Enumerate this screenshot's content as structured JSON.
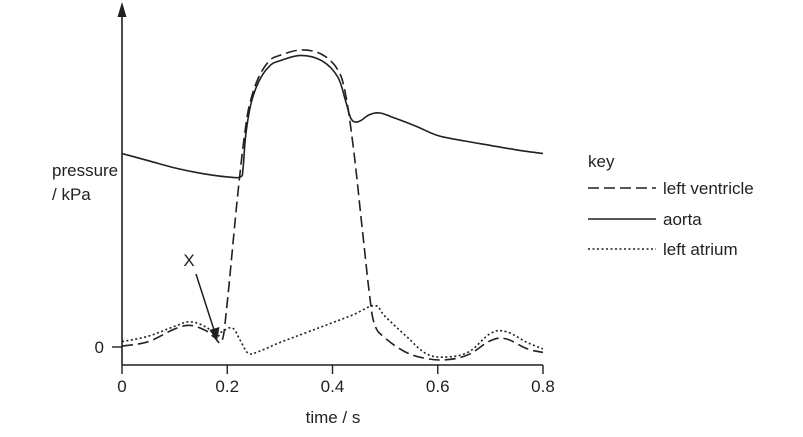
{
  "chart_data": {
    "type": "line",
    "xlabel": "time / s",
    "ylabel_line1": "pressure",
    "ylabel_line2": "/ kPa",
    "xlim": [
      0,
      0.8
    ],
    "x_ticks": [
      "0",
      "0.2",
      "0.4",
      "0.6",
      "0.8"
    ],
    "y_tick_zero": "0",
    "grid": false,
    "annotation": "X",
    "legend": {
      "title": "key",
      "placement": "right",
      "entries": [
        {
          "label": "left ventricle",
          "style": "dashed"
        },
        {
          "label": "aorta",
          "style": "solid"
        },
        {
          "label": "left atrium",
          "style": "dotted"
        }
      ]
    },
    "series": [
      {
        "name": "left ventricle",
        "x": [
          0,
          0.05,
          0.1,
          0.13,
          0.16,
          0.175,
          0.19,
          0.2,
          0.22,
          0.235,
          0.245,
          0.26,
          0.28,
          0.3,
          0.34,
          0.38,
          0.41,
          0.425,
          0.44,
          0.455,
          0.47,
          0.48,
          0.5,
          0.54,
          0.58,
          0.62,
          0.66,
          0.7,
          0.73,
          0.77,
          0.8
        ],
        "y": [
          0.1,
          0.6,
          2.0,
          2.4,
          1.8,
          1.1,
          0.7,
          5.0,
          17.0,
          24.5,
          27.5,
          30.0,
          31.8,
          32.4,
          33.0,
          32.5,
          30.8,
          28.0,
          22.0,
          14.0,
          6.0,
          2.5,
          1.0,
          -0.6,
          -1.3,
          -1.4,
          -0.8,
          0.7,
          0.9,
          -0.2,
          -0.6
        ]
      },
      {
        "name": "aorta",
        "x": [
          0,
          0.05,
          0.1,
          0.15,
          0.2,
          0.225,
          0.23,
          0.235,
          0.245,
          0.26,
          0.28,
          0.3,
          0.34,
          0.38,
          0.41,
          0.425,
          0.435,
          0.445,
          0.455,
          0.47,
          0.49,
          0.52,
          0.56,
          0.6,
          0.65,
          0.7,
          0.75,
          0.8
        ],
        "y": [
          21.5,
          20.7,
          19.9,
          19.3,
          18.9,
          18.9,
          19.8,
          23.5,
          27.0,
          29.5,
          31.2,
          31.8,
          32.4,
          31.8,
          30.0,
          27.3,
          25.4,
          25.0,
          25.2,
          25.8,
          26.0,
          25.4,
          24.5,
          23.5,
          22.9,
          22.4,
          21.9,
          21.5
        ]
      },
      {
        "name": "left atrium",
        "x": [
          0,
          0.05,
          0.1,
          0.13,
          0.16,
          0.18,
          0.19,
          0.21,
          0.225,
          0.24,
          0.26,
          0.3,
          0.35,
          0.4,
          0.44,
          0.48,
          0.5,
          0.54,
          0.58,
          0.62,
          0.66,
          0.7,
          0.73,
          0.77,
          0.8
        ],
        "y": [
          0.6,
          1.2,
          2.3,
          2.8,
          2.2,
          1.2,
          1.7,
          2.1,
          0.7,
          -0.7,
          -0.5,
          0.5,
          1.6,
          2.7,
          3.6,
          4.6,
          3.4,
          1.2,
          -0.8,
          -1.1,
          -0.5,
          1.5,
          1.7,
          0.5,
          -0.2
        ]
      }
    ]
  }
}
